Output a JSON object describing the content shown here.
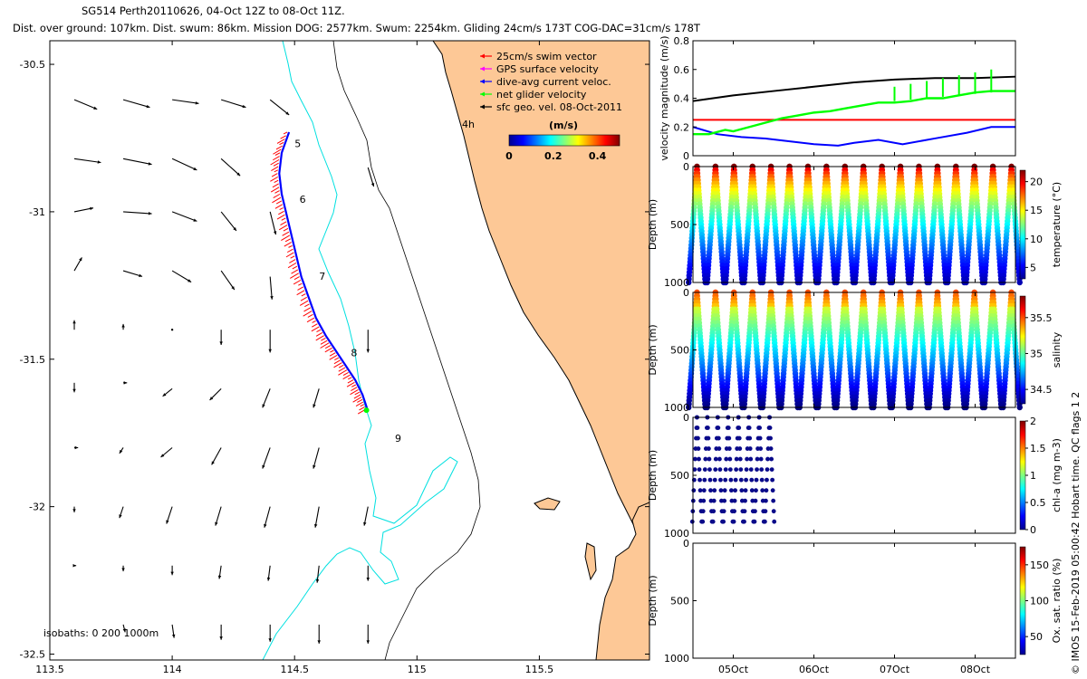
{
  "header": {
    "title_line": "SG514 Perth20110626, 04-Oct 12Z to 08-Oct 11Z.",
    "stats_line": "Dist. over ground: 107km. Dist. swum: 86km. Mission DOG: 2577km. Swum: 2254km. Gliding 24cm/s 173T COG-DAC=31cm/s 178T"
  },
  "colors": {
    "land": "#fdc896",
    "isobath_200": "#00e0e0",
    "isobath_1000": "#000000",
    "swim": "#ff0000",
    "gps": "#ff00ff",
    "dac": "#0000ff",
    "net": "#00ff00",
    "sfc": "#000000"
  },
  "chart_data": [
    {
      "type": "map",
      "id": "track_map",
      "xlim": [
        113.5,
        115.95
      ],
      "ylim": [
        -32.52,
        -30.42
      ],
      "xticks": [
        113.5,
        114,
        114.5,
        115,
        115.5
      ],
      "xtick_labels": [
        "113.5",
        "114",
        "114.5",
        "115",
        "115.5"
      ],
      "yticks": [
        -30.5,
        -31,
        -31.5,
        -32,
        -32.5
      ],
      "ytick_labels": [
        "-30.5",
        "-31",
        "-31.5",
        "-32",
        "-32.5"
      ],
      "legend": [
        {
          "label": "25cm/s swim vector",
          "color": "#ff0000"
        },
        {
          "label": "GPS surface velocity",
          "color": "#ff00ff"
        },
        {
          "label": "dive-avg current veloc.",
          "color": "#0000ff"
        },
        {
          "label": "net glider velocity",
          "color": "#00ff00"
        },
        {
          "label": "sfc geo. vel. 08-Oct-2011",
          "color": "#000000"
        }
      ],
      "legend_placement": "top-right",
      "colorbar": {
        "label": "(m/s)",
        "ticks": [
          "0",
          "0.2",
          "0.4"
        ],
        "range": [
          0,
          0.5
        ]
      },
      "time_marker": "4h",
      "day_labels": [
        {
          "label": "5",
          "lon": 114.5,
          "lat": -30.78
        },
        {
          "label": "6",
          "lon": 114.52,
          "lat": -30.97
        },
        {
          "label": "7",
          "lon": 114.6,
          "lat": -31.23
        },
        {
          "label": "8",
          "lon": 114.73,
          "lat": -31.49
        },
        {
          "label": "9",
          "lon": 114.91,
          "lat": -31.78
        }
      ],
      "isobaths_label": "isobaths: 0   200  1000m",
      "track": {
        "lon": [
          114.47,
          114.44,
          114.43,
          114.44,
          114.46,
          114.48,
          114.5,
          114.52,
          114.55,
          114.58,
          114.62,
          114.66,
          114.7,
          114.74,
          114.77,
          114.79
        ],
        "lat": [
          -30.73,
          -30.8,
          -30.87,
          -30.94,
          -31.01,
          -31.08,
          -31.15,
          -31.22,
          -31.29,
          -31.36,
          -31.42,
          -31.47,
          -31.52,
          -31.57,
          -31.62,
          -31.67
        ]
      },
      "sfc_vectors": [
        {
          "lon": 113.6,
          "lat": -30.62,
          "u": 0.12,
          "v": -0.05
        },
        {
          "lon": 113.8,
          "lat": -30.62,
          "u": 0.14,
          "v": -0.04
        },
        {
          "lon": 114.0,
          "lat": -30.62,
          "u": 0.14,
          "v": -0.02
        },
        {
          "lon": 114.2,
          "lat": -30.62,
          "u": 0.13,
          "v": -0.04
        },
        {
          "lon": 114.4,
          "lat": -30.62,
          "u": 0.1,
          "v": -0.08
        },
        {
          "lon": 113.6,
          "lat": -30.82,
          "u": 0.14,
          "v": -0.02
        },
        {
          "lon": 113.8,
          "lat": -30.82,
          "u": 0.15,
          "v": -0.03
        },
        {
          "lon": 114.0,
          "lat": -30.82,
          "u": 0.13,
          "v": -0.06
        },
        {
          "lon": 114.2,
          "lat": -30.82,
          "u": 0.1,
          "v": -0.09
        },
        {
          "lon": 114.8,
          "lat": -30.85,
          "u": 0.03,
          "v": -0.1
        },
        {
          "lon": 113.6,
          "lat": -31.0,
          "u": 0.1,
          "v": 0.02
        },
        {
          "lon": 113.8,
          "lat": -31.0,
          "u": 0.15,
          "v": -0.01
        },
        {
          "lon": 114.0,
          "lat": -31.0,
          "u": 0.13,
          "v": -0.05
        },
        {
          "lon": 114.2,
          "lat": -31.0,
          "u": 0.08,
          "v": -0.1
        },
        {
          "lon": 114.4,
          "lat": -31.0,
          "u": 0.03,
          "v": -0.12
        },
        {
          "lon": 113.6,
          "lat": -31.2,
          "u": 0.04,
          "v": 0.07
        },
        {
          "lon": 113.8,
          "lat": -31.2,
          "u": 0.1,
          "v": -0.03
        },
        {
          "lon": 114.0,
          "lat": -31.2,
          "u": 0.1,
          "v": -0.06
        },
        {
          "lon": 114.2,
          "lat": -31.2,
          "u": 0.07,
          "v": -0.1
        },
        {
          "lon": 114.4,
          "lat": -31.22,
          "u": 0.01,
          "v": -0.12
        },
        {
          "lon": 113.6,
          "lat": -31.4,
          "u": 0.0,
          "v": 0.05
        },
        {
          "lon": 113.8,
          "lat": -31.4,
          "u": 0.0,
          "v": 0.03
        },
        {
          "lon": 114.0,
          "lat": -31.4,
          "u": 0.0,
          "v": 0.0
        },
        {
          "lon": 114.2,
          "lat": -31.4,
          "u": 0.0,
          "v": -0.08
        },
        {
          "lon": 114.4,
          "lat": -31.4,
          "u": 0.0,
          "v": -0.12
        },
        {
          "lon": 114.8,
          "lat": -31.4,
          "u": 0.0,
          "v": -0.12
        },
        {
          "lon": 113.6,
          "lat": -31.58,
          "u": 0.0,
          "v": -0.05
        },
        {
          "lon": 113.8,
          "lat": -31.58,
          "u": 0.02,
          "v": 0.0
        },
        {
          "lon": 114.0,
          "lat": -31.6,
          "u": -0.05,
          "v": -0.04
        },
        {
          "lon": 114.2,
          "lat": -31.6,
          "u": -0.06,
          "v": -0.06
        },
        {
          "lon": 114.4,
          "lat": -31.6,
          "u": -0.04,
          "v": -0.1
        },
        {
          "lon": 114.6,
          "lat": -31.6,
          "u": -0.03,
          "v": -0.1
        },
        {
          "lon": 113.6,
          "lat": -31.8,
          "u": 0.02,
          "v": 0.0
        },
        {
          "lon": 113.8,
          "lat": -31.8,
          "u": -0.02,
          "v": -0.03
        },
        {
          "lon": 114.0,
          "lat": -31.8,
          "u": -0.06,
          "v": -0.05
        },
        {
          "lon": 114.2,
          "lat": -31.8,
          "u": -0.05,
          "v": -0.09
        },
        {
          "lon": 114.4,
          "lat": -31.8,
          "u": -0.04,
          "v": -0.11
        },
        {
          "lon": 114.6,
          "lat": -31.8,
          "u": -0.03,
          "v": -0.11
        },
        {
          "lon": 113.6,
          "lat": -32.0,
          "u": 0.0,
          "v": -0.03
        },
        {
          "lon": 113.8,
          "lat": -32.0,
          "u": -0.02,
          "v": -0.06
        },
        {
          "lon": 114.0,
          "lat": -32.0,
          "u": -0.03,
          "v": -0.09
        },
        {
          "lon": 114.2,
          "lat": -32.0,
          "u": -0.03,
          "v": -0.1
        },
        {
          "lon": 114.4,
          "lat": -32.0,
          "u": -0.03,
          "v": -0.11
        },
        {
          "lon": 114.6,
          "lat": -32.0,
          "u": -0.02,
          "v": -0.11
        },
        {
          "lon": 114.8,
          "lat": -32.0,
          "u": -0.02,
          "v": -0.1
        },
        {
          "lon": 113.6,
          "lat": -32.2,
          "u": 0.01,
          "v": 0.0
        },
        {
          "lon": 113.8,
          "lat": -32.2,
          "u": 0.0,
          "v": -0.03
        },
        {
          "lon": 114.0,
          "lat": -32.2,
          "u": 0.0,
          "v": -0.05
        },
        {
          "lon": 114.2,
          "lat": -32.2,
          "u": -0.01,
          "v": -0.07
        },
        {
          "lon": 114.4,
          "lat": -32.2,
          "u": -0.01,
          "v": -0.08
        },
        {
          "lon": 114.6,
          "lat": -32.2,
          "u": -0.01,
          "v": -0.09
        },
        {
          "lon": 114.8,
          "lat": -32.2,
          "u": 0.0,
          "v": -0.08
        },
        {
          "lon": 113.8,
          "lat": -32.4,
          "u": 0.01,
          "v": -0.04
        },
        {
          "lon": 114.0,
          "lat": -32.4,
          "u": 0.01,
          "v": -0.07
        },
        {
          "lon": 114.2,
          "lat": -32.4,
          "u": 0.0,
          "v": -0.08
        },
        {
          "lon": 114.4,
          "lat": -32.4,
          "u": 0.0,
          "v": -0.09
        },
        {
          "lon": 114.6,
          "lat": -32.4,
          "u": 0.0,
          "v": -0.1
        },
        {
          "lon": 114.8,
          "lat": -32.4,
          "u": 0.0,
          "v": -0.1
        }
      ]
    },
    {
      "type": "line",
      "id": "velocity_panel",
      "ylabel": "velocity magnitude (m/s)",
      "ylim": [
        0,
        0.8
      ],
      "yticks": [
        "0",
        "0.2",
        "0.4",
        "0.6",
        "0.8"
      ],
      "xlim": [
        4.5,
        8.5
      ],
      "series": [
        {
          "color": "#000000",
          "x": [
            4.5,
            5.0,
            5.5,
            6.0,
            6.5,
            7.0,
            7.5,
            8.0,
            8.5
          ],
          "values": [
            0.38,
            0.42,
            0.45,
            0.48,
            0.51,
            0.53,
            0.54,
            0.54,
            0.55
          ]
        },
        {
          "color": "#ff0000",
          "x": [
            4.5,
            8.5
          ],
          "values": [
            0.25,
            0.25
          ]
        },
        {
          "color": "#0000ff",
          "x": [
            4.5,
            4.8,
            5.1,
            5.4,
            5.7,
            6.0,
            6.3,
            6.5,
            6.8,
            7.1,
            7.5,
            7.9,
            8.2,
            8.5
          ],
          "values": [
            0.2,
            0.15,
            0.13,
            0.12,
            0.1,
            0.08,
            0.07,
            0.09,
            0.11,
            0.08,
            0.12,
            0.16,
            0.2,
            0.2
          ]
        },
        {
          "color": "#00ff00",
          "x": [
            4.5,
            4.7,
            4.9,
            5.0,
            5.2,
            5.4,
            5.6,
            5.8,
            6.0,
            6.2,
            6.4,
            6.6,
            6.8,
            7.0,
            7.2,
            7.4,
            7.6,
            7.8,
            8.0,
            8.2,
            8.4,
            8.5
          ],
          "values": [
            0.15,
            0.15,
            0.18,
            0.17,
            0.2,
            0.23,
            0.26,
            0.28,
            0.3,
            0.31,
            0.33,
            0.35,
            0.37,
            0.37,
            0.38,
            0.4,
            0.4,
            0.42,
            0.44,
            0.45,
            0.45,
            0.45
          ]
        }
      ]
    },
    {
      "type": "heatmap",
      "id": "temperature_panel",
      "ylabel": "Depth (m)",
      "ylim": [
        0,
        1000
      ],
      "yticks": [
        "0",
        "500",
        "1000"
      ],
      "colorbar_label": "temperature (°C)",
      "colorbar_ticks": [
        "5",
        "10",
        "15",
        "20"
      ],
      "colorbar_range": [
        3,
        22
      ],
      "profile_count": 18,
      "profile_max_depth": 1000
    },
    {
      "type": "heatmap",
      "id": "salinity_panel",
      "ylabel": "Depth (m)",
      "ylim": [
        0,
        1000
      ],
      "yticks": [
        "0",
        "500",
        "1000"
      ],
      "colorbar_label": "salinity",
      "colorbar_ticks": [
        "34.5",
        "35",
        "35.5"
      ],
      "colorbar_range": [
        34.3,
        35.8
      ],
      "profile_count": 18,
      "profile_max_depth": 1000
    },
    {
      "type": "scatter",
      "id": "chla_panel",
      "ylabel": "Depth (m)",
      "ylim": [
        0,
        1000
      ],
      "yticks": [
        "0",
        "500",
        "1000"
      ],
      "colorbar_label": "chl-a (mg m-3)",
      "colorbar_ticks": [
        "0",
        "0.5",
        "1",
        "1.5",
        "2"
      ],
      "colorbar_range": [
        0,
        2
      ],
      "profile_count": 8,
      "profile_max_depth": 900
    },
    {
      "type": "scatter",
      "id": "oxygen_panel",
      "ylabel": "Depth (m)",
      "ylim": [
        0,
        1000
      ],
      "yticks": [
        "0",
        "500",
        "1000"
      ],
      "colorbar_label": "Ox. sat. ratio (%)",
      "colorbar_ticks": [
        "50",
        "100",
        "150"
      ],
      "colorbar_range": [
        25,
        175
      ]
    },
    {
      "type": "axis",
      "id": "time_axis",
      "xlim": [
        4.5,
        8.5
      ],
      "xticks": [
        5,
        6,
        7,
        8
      ],
      "xtick_labels": [
        "05Oct",
        "06Oct",
        "07Oct",
        "08Oct"
      ]
    }
  ],
  "footer_note": "© IMOS 15-Feb-2019 05:00:42 Hobart time. QC flags 1  2"
}
